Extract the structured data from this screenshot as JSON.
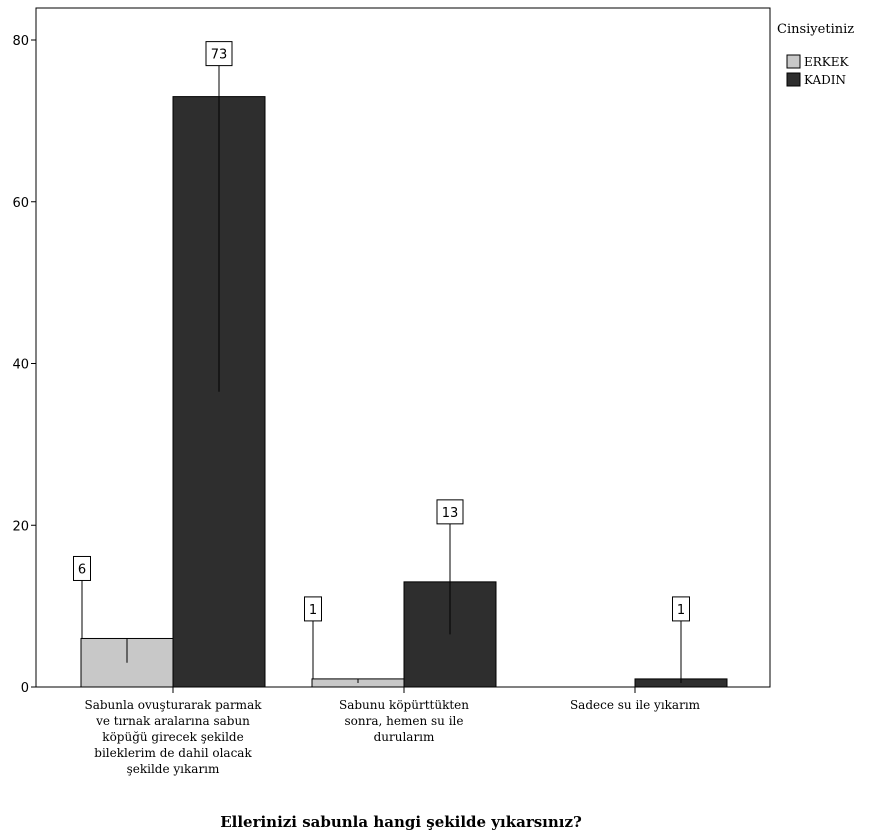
{
  "chart_data": {
    "type": "bar",
    "title": "",
    "xlabel": "Ellerinizi sabunla hangi şekilde yıkarsınız?",
    "ylabel": "",
    "ylim": [
      0,
      80
    ],
    "yticks": [
      0,
      20,
      40,
      60,
      80
    ],
    "grid": false,
    "legend": {
      "title": "Cinsiyetiniz",
      "placement": "right"
    },
    "categories": [
      [
        "Sabunla ovuşturarak parmak",
        "ve tırnak aralarına sabun",
        "köpüğü girecek şekilde",
        "bileklerim de dahil olacak",
        "şekilde yıkarım"
      ],
      [
        "Sabunu köpürttükten",
        "sonra, hemen su ile",
        "durularım"
      ],
      [
        "Sadece su ile yıkarım"
      ]
    ],
    "series": [
      {
        "name": "ERKEK",
        "color": "#c8c8c8",
        "values": [
          6,
          1,
          0
        ],
        "labels": [
          "6",
          "1",
          ""
        ],
        "error_low": [
          3,
          0.5,
          0
        ]
      },
      {
        "name": "KADIN",
        "color": "#2e2e2e",
        "values": [
          73,
          13,
          1
        ],
        "labels": [
          "73",
          "13",
          "1"
        ],
        "error_low": [
          36.5,
          6.5,
          0.5
        ]
      }
    ]
  }
}
